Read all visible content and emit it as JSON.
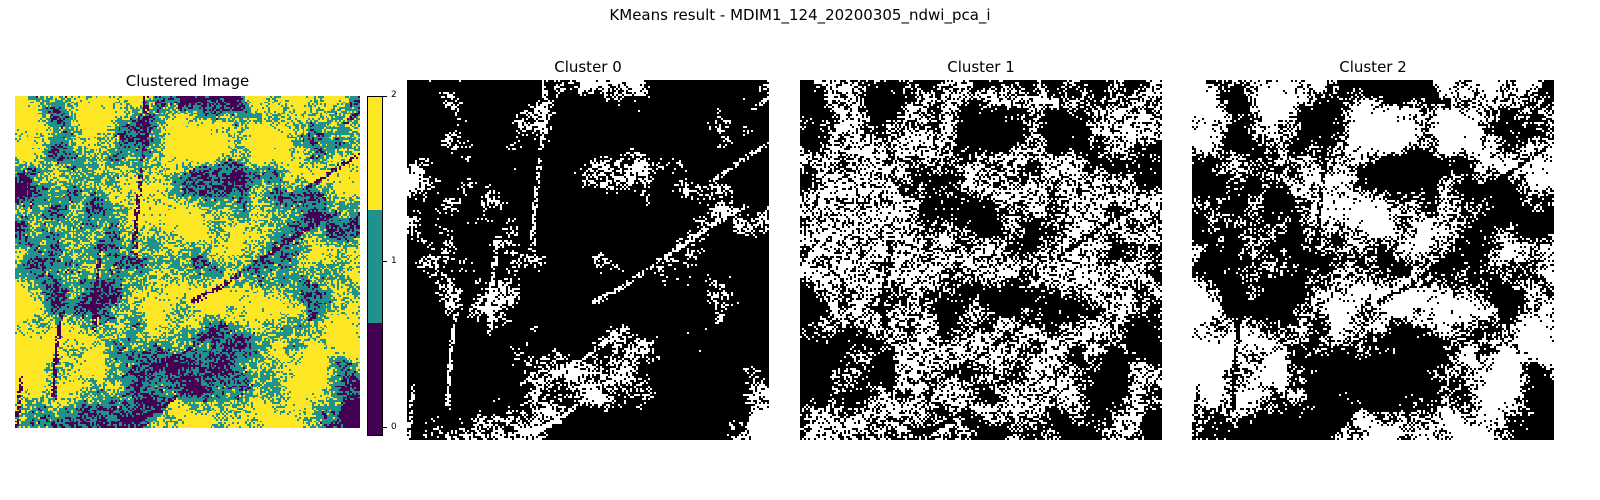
{
  "figure": {
    "suptitle": "KMeans result - MDIM1_124_20200305_ndwi_pca_i"
  },
  "panels": [
    {
      "title": "Clustered Image",
      "kind": "clustered",
      "colormap": "viridis"
    },
    {
      "title": "Cluster 0",
      "kind": "mask",
      "cluster": 0
    },
    {
      "title": "Cluster 1",
      "kind": "mask",
      "cluster": 1
    },
    {
      "title": "Cluster 2",
      "kind": "mask",
      "cluster": 2
    }
  ],
  "colorbar": {
    "ticks": [
      "0",
      "1",
      "2"
    ],
    "colors": {
      "0": "#440154",
      "1": "#21918c",
      "2": "#fde725"
    }
  },
  "mask_colors": {
    "on": "#ffffff",
    "off": "#000000"
  }
}
